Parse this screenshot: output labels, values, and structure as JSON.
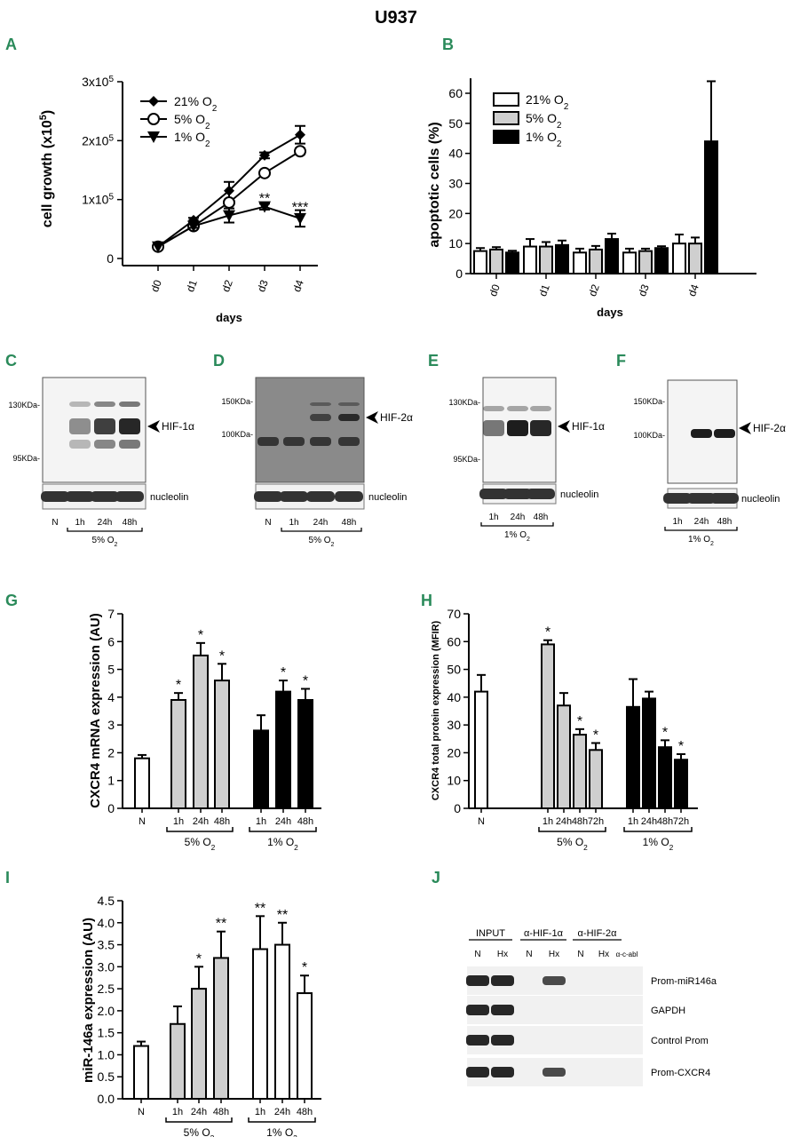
{
  "figure_title": "U937",
  "panel_letters": [
    "A",
    "B",
    "C",
    "D",
    "E",
    "F",
    "G",
    "H",
    "I",
    "J"
  ],
  "chart_data": [
    {
      "panel": "A",
      "type": "line",
      "categories": [
        "d0",
        "d1",
        "d2",
        "d3",
        "d4"
      ],
      "xlabel": "days",
      "ylabel": "cell growth (x10",
      "ylabel_sup": "5",
      "ylabel_end": ")",
      "ylim": [
        0,
        300000
      ],
      "yticks": [
        {
          "v": 0,
          "base": "0",
          "exp": ""
        },
        {
          "v": 100000,
          "base": "1x10",
          "exp": "5"
        },
        {
          "v": 200000,
          "base": "2x10",
          "exp": "5"
        },
        {
          "v": 300000,
          "base": "3x10",
          "exp": "5"
        }
      ],
      "series": [
        {
          "name": "21% O",
          "sub": "2",
          "marker": "diamond",
          "values": [
            20000,
            65000,
            115000,
            175000,
            210000
          ],
          "err": [
            2000,
            4000,
            15000,
            5000,
            15000
          ]
        },
        {
          "name": "5% O",
          "sub": "2",
          "marker": "circle",
          "values": [
            20000,
            55000,
            95000,
            145000,
            182000
          ],
          "err": [
            2000,
            3000,
            4000,
            4000,
            5000
          ]
        },
        {
          "name": "1% O",
          "sub": "2",
          "marker": "triangle",
          "values": [
            20000,
            55000,
            73000,
            88000,
            68000
          ],
          "err": [
            2000,
            3000,
            12000,
            5000,
            14000
          ]
        }
      ],
      "annotations": [
        {
          "cat": "d3",
          "value": 103000,
          "text": "**"
        },
        {
          "cat": "d4",
          "value": 88000,
          "text": "***"
        }
      ]
    },
    {
      "panel": "B",
      "type": "bar",
      "categories": [
        "d0",
        "d1",
        "d2",
        "d3",
        "d4"
      ],
      "xlabel": "days",
      "ylabel": "apoptotic cells (%)",
      "ylim": [
        0,
        65
      ],
      "yticks": [
        0,
        10,
        20,
        30,
        40,
        50,
        60
      ],
      "series": [
        {
          "name": "21% O",
          "sub": "2",
          "fill": "#ffffff",
          "values": [
            7.5,
            9,
            7,
            7,
            10
          ],
          "err": [
            1,
            2.5,
            1.3,
            1.3,
            3
          ]
        },
        {
          "name": "5% O",
          "sub": "2",
          "fill": "#cfcfcf",
          "values": [
            8,
            9,
            8,
            7.5,
            10
          ],
          "err": [
            0.8,
            1.5,
            1.2,
            0.8,
            2
          ]
        },
        {
          "name": "1% O",
          "sub": "2",
          "fill": "#000000",
          "values": [
            7,
            9.5,
            11.5,
            8.5,
            44
          ],
          "err": [
            0.6,
            1.5,
            1.8,
            0.6,
            20
          ]
        }
      ]
    },
    {
      "panel": "G",
      "type": "bar",
      "ylabel": "CXCR4 mRNA expression (AU)",
      "ylim": [
        0,
        7
      ],
      "yticks": [
        0,
        1,
        2,
        3,
        4,
        5,
        6,
        7
      ],
      "bars": [
        {
          "label": "N",
          "value": 1.8,
          "err": 0.12,
          "fill": "#ffffff",
          "star": ""
        },
        {
          "label": "1h",
          "value": 3.9,
          "err": 0.25,
          "fill": "#cfcfcf",
          "star": "*"
        },
        {
          "label": "24h",
          "value": 5.5,
          "err": 0.45,
          "fill": "#cfcfcf",
          "star": "*"
        },
        {
          "label": "48h",
          "value": 4.6,
          "err": 0.6,
          "fill": "#cfcfcf",
          "star": "*"
        },
        {
          "label": "1h",
          "value": 2.8,
          "err": 0.55,
          "fill": "#000000",
          "star": ""
        },
        {
          "label": "24h",
          "value": 4.2,
          "err": 0.4,
          "fill": "#000000",
          "star": "*"
        },
        {
          "label": "48h",
          "value": 3.9,
          "err": 0.4,
          "fill": "#000000",
          "star": "*"
        }
      ],
      "groups": [
        {
          "label": "5% O",
          "sub": "2"
        },
        {
          "label": "1% O",
          "sub": "2"
        }
      ]
    },
    {
      "panel": "H",
      "type": "bar",
      "ylabel": "CXCR4 total protein expression (MFIR)",
      "ylim": [
        0,
        70
      ],
      "yticks": [
        0,
        10,
        20,
        30,
        40,
        50,
        60,
        70
      ],
      "bars": [
        {
          "label": "N",
          "value": 42,
          "err": 6,
          "fill": "#ffffff",
          "star": ""
        },
        {
          "label": "1h",
          "value": 59,
          "err": 1.5,
          "fill": "#cfcfcf",
          "star": "*"
        },
        {
          "label": "24h",
          "value": 37,
          "err": 4.5,
          "fill": "#cfcfcf",
          "star": ""
        },
        {
          "label": "48h",
          "value": 26.5,
          "err": 2,
          "fill": "#cfcfcf",
          "star": "*"
        },
        {
          "label": "72h",
          "value": 21,
          "err": 2.5,
          "fill": "#cfcfcf",
          "star": "*"
        },
        {
          "label": "1h",
          "value": 36.5,
          "err": 10,
          "fill": "#000000",
          "star": ""
        },
        {
          "label": "24h",
          "value": 39.5,
          "err": 2.5,
          "fill": "#000000",
          "star": ""
        },
        {
          "label": "48h",
          "value": 22,
          "err": 2.5,
          "fill": "#000000",
          "star": "*"
        },
        {
          "label": "72h",
          "value": 17.5,
          "err": 2,
          "fill": "#000000",
          "star": "*"
        }
      ],
      "groups": [
        {
          "label": "5% O",
          "sub": "2"
        },
        {
          "label": "1% O",
          "sub": "2"
        }
      ]
    },
    {
      "panel": "I",
      "type": "bar",
      "ylabel": "miR-146a expression (AU)",
      "ylim": [
        0,
        4.5
      ],
      "yticks": [
        "0.0",
        "0.5",
        "1.0",
        "1.5",
        "2.0",
        "2.5",
        "3.0",
        "3.5",
        "4.0",
        "4.5"
      ],
      "bars": [
        {
          "label": "N",
          "value": 1.2,
          "err": 0.1,
          "fill": "#ffffff",
          "star": ""
        },
        {
          "label": "1h",
          "value": 1.7,
          "err": 0.4,
          "fill": "#cfcfcf",
          "star": ""
        },
        {
          "label": "24h",
          "value": 2.5,
          "err": 0.5,
          "fill": "#cfcfcf",
          "star": "*"
        },
        {
          "label": "48h",
          "value": 3.2,
          "err": 0.6,
          "fill": "#cfcfcf",
          "star": "**"
        },
        {
          "label": "1h",
          "value": 3.4,
          "err": 0.75,
          "fill": "#ffffff",
          "star": "**"
        },
        {
          "label": "24h",
          "value": 3.5,
          "err": 0.5,
          "fill": "#ffffff",
          "star": "**"
        },
        {
          "label": "48h",
          "value": 2.4,
          "err": 0.4,
          "fill": "#ffffff",
          "star": "*"
        }
      ],
      "groups": [
        {
          "label": "5% O",
          "sub": "2"
        },
        {
          "label": "1% O",
          "sub": "2"
        }
      ]
    }
  ],
  "blots": {
    "C": {
      "markers": [
        "130KDa-",
        "95KDa-"
      ],
      "protein": "HIF-1α",
      "loading": "nucleolin",
      "lanes": [
        "N",
        "1h",
        "24h",
        "48h"
      ],
      "group": "5% O",
      "group_sub": "2"
    },
    "D": {
      "markers": [
        "150KDa-",
        "100KDa-"
      ],
      "protein": "HIF-2α",
      "loading": "nucleolin",
      "lanes": [
        "N",
        "1h",
        "24h",
        "48h"
      ],
      "group": "5% O",
      "group_sub": "2"
    },
    "E": {
      "markers": [
        "130KDa-",
        "95KDa-"
      ],
      "protein": "HIF-1α",
      "loading": "nucleolin",
      "lanes": [
        "1h",
        "24h",
        "48h"
      ],
      "group": "1% O",
      "group_sub": "2"
    },
    "F": {
      "markers": [
        "150KDa-",
        "100KDa-"
      ],
      "protein": "HIF-2α",
      "loading": "nucleolin",
      "lanes": [
        "1h",
        "24h",
        "48h"
      ],
      "group": "1% O",
      "group_sub": "2"
    }
  },
  "chip": {
    "groups": [
      "INPUT",
      "α-HIF-1α",
      "α-HIF-2α"
    ],
    "lanes": [
      "N",
      "Hx",
      "N",
      "Hx",
      "N",
      "Hx",
      "α-c-abl"
    ],
    "rows": [
      "Prom-miR146a",
      "GAPDH",
      "Control Prom",
      "Prom-CXCR4"
    ]
  }
}
